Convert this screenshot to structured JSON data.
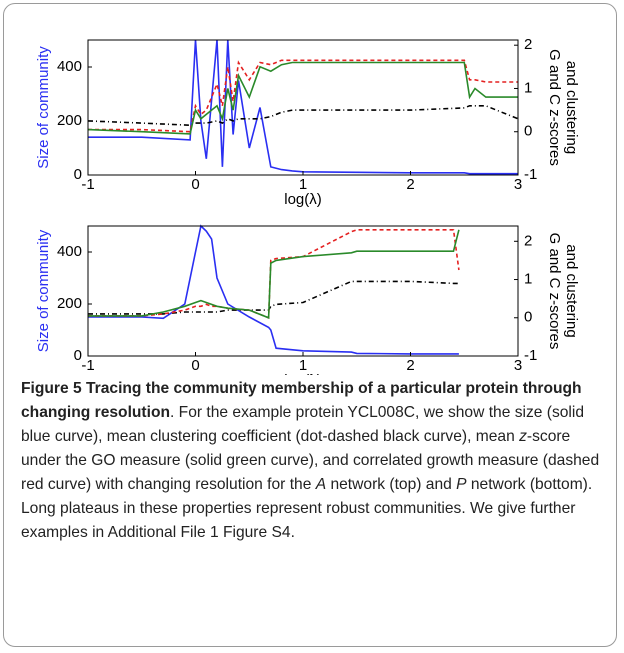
{
  "chart_data": [
    {
      "type": "line",
      "xlabel": "log(λ)",
      "ylabel": "Size of community",
      "y2label": [
        "G and C z-scores",
        "and clustering"
      ],
      "xlim": [
        -1,
        3
      ],
      "xticks": [
        -1,
        0,
        1,
        2,
        3
      ],
      "ylim": [
        0,
        500
      ],
      "yticks": [
        0,
        200,
        400
      ],
      "y2lim": [
        -1,
        2.12
      ],
      "y2ticks": [
        -1,
        0,
        1,
        2
      ],
      "x": [
        -1,
        -0.5,
        -0.05,
        0,
        0.05,
        0.1,
        0.2,
        0.25,
        0.3,
        0.35,
        0.4,
        0.5,
        0.6,
        0.7,
        0.8,
        0.9,
        1,
        1.5,
        2,
        2.5,
        2.55,
        2.6,
        2.7,
        3
      ],
      "series": [
        {
          "color": "#2a2ff2",
          "style": "solid",
          "values": [
            140,
            140,
            130,
            500,
            200,
            60,
            500,
            30,
            500,
            150,
            350,
            100,
            250,
            30,
            20,
            15,
            12,
            10,
            8,
            8,
            5,
            5,
            5,
            5
          ]
        },
        {
          "color": "#000000",
          "style": "dashdot",
          "axis": "y2",
          "values": [
            0.25,
            0.2,
            0.15,
            0.2,
            0.2,
            0.2,
            0.25,
            0.2,
            0.3,
            0.25,
            0.3,
            0.3,
            0.3,
            0.35,
            0.45,
            0.5,
            0.5,
            0.5,
            0.5,
            0.55,
            0.6,
            0.6,
            0.6,
            0.3
          ]
        },
        {
          "color": "#e42121",
          "style": "dashed",
          "axis": "y2",
          "values": [
            0.05,
            0.05,
            0,
            0.6,
            0.4,
            0.5,
            1.1,
            0.6,
            1.5,
            0.7,
            1.6,
            1.2,
            1.6,
            1.55,
            1.65,
            1.65,
            1.65,
            1.65,
            1.65,
            1.65,
            1.2,
            1.2,
            1.15,
            1.15
          ]
        },
        {
          "color": "#2a8a2a",
          "style": "solid",
          "axis": "y2",
          "values": [
            0.05,
            0,
            -0.05,
            0.5,
            0.3,
            0.4,
            0.6,
            0.3,
            1,
            0.5,
            1.3,
            0.8,
            1.5,
            1.4,
            1.55,
            1.6,
            1.6,
            1.6,
            1.6,
            1.6,
            0.8,
            1,
            0.8,
            0.8
          ]
        }
      ]
    },
    {
      "type": "line",
      "xlabel": "log(λ)",
      "ylabel": "Size of community",
      "y2label": [
        "G and C z-scores",
        "and clustering"
      ],
      "xlim": [
        -1,
        3
      ],
      "xticks": [
        -1,
        0,
        1,
        2,
        3
      ],
      "ylim": [
        0,
        500
      ],
      "yticks": [
        0,
        200,
        400
      ],
      "y2lim": [
        -1,
        2.4
      ],
      "y2ticks": [
        -1,
        0,
        1,
        2
      ],
      "x": [
        -1,
        -0.5,
        -0.3,
        -0.1,
        0,
        0.05,
        0.1,
        0.15,
        0.2,
        0.3,
        0.5,
        0.68,
        0.7,
        0.75,
        1,
        1.45,
        1.5,
        2,
        2.4,
        2.45
      ],
      "series": [
        {
          "color": "#2a2ff2",
          "style": "solid",
          "values": [
            150,
            150,
            145,
            200,
            400,
            500,
            480,
            450,
            300,
            200,
            150,
            110,
            100,
            30,
            20,
            15,
            10,
            8,
            8,
            8
          ]
        },
        {
          "color": "#000000",
          "style": "dashdot",
          "axis": "y2",
          "values": [
            0.1,
            0.1,
            0.1,
            0.15,
            0.15,
            0.15,
            0.15,
            0.15,
            0.15,
            0.2,
            0.2,
            0.2,
            0.3,
            0.35,
            0.4,
            0.95,
            0.95,
            0.95,
            0.9,
            0.9
          ]
        },
        {
          "color": "#e42121",
          "style": "dashed",
          "axis": "y2",
          "values": [
            0.05,
            0.05,
            0.1,
            0.2,
            0.3,
            0.3,
            0.35,
            0.3,
            0.3,
            0.25,
            0.2,
            0,
            1.5,
            1.55,
            1.6,
            2.25,
            2.3,
            2.3,
            2.3,
            1.25
          ]
        },
        {
          "color": "#2a8a2a",
          "style": "solid",
          "axis": "y2",
          "values": [
            0.05,
            0.05,
            0.15,
            0.3,
            0.4,
            0.45,
            0.4,
            0.35,
            0.3,
            0.25,
            0.2,
            0,
            1.43,
            1.5,
            1.6,
            1.7,
            1.74,
            1.74,
            1.74,
            2.3
          ]
        }
      ]
    }
  ],
  "caption": {
    "runs": [
      {
        "text": "Figure 5 Tracing the community membership of a particular protein through changing resolution",
        "style": "bold"
      },
      {
        "text": ". For the example protein YCL008C, we show the size (solid blue curve), mean clustering coefficient (dot-dashed black curve), mean ",
        "style": "normal"
      },
      {
        "text": "z",
        "style": "italic"
      },
      {
        "text": "-score under the GO measure (solid green curve), and correlated growth measure (dashed red curve) with changing resolution for the ",
        "style": "normal"
      },
      {
        "text": "A",
        "style": "italic"
      },
      {
        "text": " network (top) and ",
        "style": "normal"
      },
      {
        "text": "P",
        "style": "italic"
      },
      {
        "text": " network (bottom). Long plateaus in these properties represent robust communities. We give further examples in Additional File 1 Figure S4.",
        "style": "normal"
      }
    ]
  }
}
